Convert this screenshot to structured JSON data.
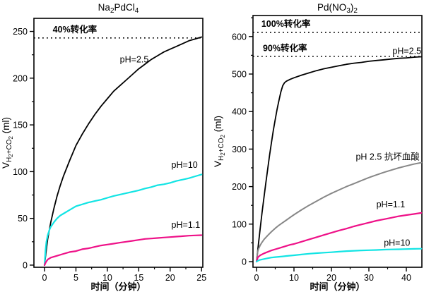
{
  "figure": {
    "background": "#ffffff",
    "text_color": "#000000"
  },
  "chart_data": [
    {
      "type": "line",
      "id": "na2pdcl4",
      "title_parts": [
        {
          "text": "Na",
          "level": 0
        },
        {
          "text": "2",
          "level": 1
        },
        {
          "text": "PdCl",
          "level": 0
        },
        {
          "text": "4",
          "level": 1
        }
      ],
      "title_plain": "Na2PdCl4",
      "xlabel": "时间（分钟）",
      "ylabel_parts": [
        {
          "text": "V",
          "level": 0
        },
        {
          "text": "H",
          "level": 1
        },
        {
          "text": "2",
          "level": 2
        },
        {
          "text": "+CO",
          "level": 1
        },
        {
          "text": "2",
          "level": 2
        },
        {
          "text": " (ml)",
          "level": 0
        }
      ],
      "ylabel_plain": "V H2+CO2 (ml)",
      "xlim": [
        -1.69,
        25.2
      ],
      "ylim": [
        -2.3,
        264
      ],
      "xticks": [
        0,
        5,
        10,
        15,
        20,
        25
      ],
      "xminor_step": 2.5,
      "yticks": [
        0,
        50,
        100,
        150,
        200,
        250
      ],
      "yminor_step": 25,
      "grid": false,
      "legend": "inline-labels",
      "ref_lines": [
        {
          "value": 243,
          "label": "40%转化率",
          "label_x": 1.3,
          "label_y": 249
        }
      ],
      "series": [
        {
          "id": "ph-2-5",
          "name": "pH=2.5",
          "color": "#000000",
          "width": 1.8,
          "label": {
            "text": "pH=2.5",
            "x": 12,
            "y": 217
          },
          "points": [
            [
              0,
              0
            ],
            [
              0.2,
              12
            ],
            [
              0.5,
              28
            ],
            [
              1,
              46
            ],
            [
              1.5,
              61
            ],
            [
              2,
              74
            ],
            [
              2.5,
              85
            ],
            [
              3,
              95
            ],
            [
              4,
              112
            ],
            [
              5,
              128
            ],
            [
              6,
              140
            ],
            [
              7,
              151
            ],
            [
              8,
              161
            ],
            [
              9,
              170
            ],
            [
              10,
              178
            ],
            [
              11,
              186
            ],
            [
              12,
              192
            ],
            [
              13,
              198
            ],
            [
              14,
              204
            ],
            [
              15,
              210
            ],
            [
              16,
              215
            ],
            [
              17,
              220
            ],
            [
              18,
              224
            ],
            [
              19,
              228
            ],
            [
              20,
              231
            ],
            [
              21,
              234
            ],
            [
              22,
              237
            ],
            [
              23,
              240
            ],
            [
              24,
              242
            ],
            [
              25,
              244
            ]
          ]
        },
        {
          "id": "ph-10",
          "name": "pH=10",
          "color": "#12e4e4",
          "width": 2.2,
          "label": {
            "text": "pH=10",
            "x": 20.2,
            "y": 104
          },
          "points": [
            [
              0,
              0
            ],
            [
              0.15,
              16
            ],
            [
              0.3,
              25
            ],
            [
              0.5,
              32
            ],
            [
              0.8,
              38
            ],
            [
              1,
              41
            ],
            [
              1.5,
              46
            ],
            [
              2,
              50
            ],
            [
              2.5,
              53
            ],
            [
              3,
              55
            ],
            [
              4,
              59
            ],
            [
              5,
              63
            ],
            [
              6,
              65
            ],
            [
              7,
              67
            ],
            [
              8,
              68.5
            ],
            [
              9,
              70
            ],
            [
              10,
              72
            ],
            [
              11,
              74
            ],
            [
              12,
              75.5
            ],
            [
              13,
              77
            ],
            [
              14,
              78.5
            ],
            [
              15,
              80
            ],
            [
              16,
              82
            ],
            [
              17,
              83.5
            ],
            [
              18,
              85.5
            ],
            [
              19,
              86.5
            ],
            [
              20,
              88
            ],
            [
              21,
              90
            ],
            [
              22,
              91.5
            ],
            [
              23,
              93
            ],
            [
              24,
              95
            ],
            [
              25,
              97
            ]
          ]
        },
        {
          "id": "ph-1-1",
          "name": "pH=1.1",
          "color": "#ee1188",
          "width": 2.2,
          "label": {
            "text": "pH=1.1",
            "x": 20.2,
            "y": 40
          },
          "points": [
            [
              0,
              0
            ],
            [
              0.2,
              3
            ],
            [
              0.5,
              6
            ],
            [
              1,
              8
            ],
            [
              2,
              10
            ],
            [
              3,
              12
            ],
            [
              4,
              14
            ],
            [
              5,
              15
            ],
            [
              6,
              17
            ],
            [
              7,
              18
            ],
            [
              8,
              19.5
            ],
            [
              9,
              21
            ],
            [
              10,
              22
            ],
            [
              11,
              23
            ],
            [
              12,
              24
            ],
            [
              13,
              25
            ],
            [
              14,
              26
            ],
            [
              15,
              27
            ],
            [
              16,
              28
            ],
            [
              17,
              28.5
            ],
            [
              18,
              29
            ],
            [
              19,
              29.5
            ],
            [
              20,
              30
            ],
            [
              21,
              30.5
            ],
            [
              22,
              31
            ],
            [
              23,
              31.5
            ],
            [
              24,
              31.8
            ],
            [
              25,
              32
            ]
          ]
        }
      ]
    },
    {
      "type": "line",
      "id": "pdno32",
      "title_parts": [
        {
          "text": "Pd(NO",
          "level": 0
        },
        {
          "text": "3",
          "level": 1
        },
        {
          "text": ")",
          "level": 0
        },
        {
          "text": "2",
          "level": 1
        }
      ],
      "title_plain": "Pd(NO3)2",
      "xlabel": "时间（分钟）",
      "ylabel_parts": [
        {
          "text": "V",
          "level": 0
        },
        {
          "text": "H",
          "level": 1
        },
        {
          "text": "2",
          "level": 2
        },
        {
          "text": "+CO",
          "level": 1
        },
        {
          "text": "2",
          "level": 2
        },
        {
          "text": " (ml)",
          "level": 0
        }
      ],
      "ylabel_plain": "V H2+CO2 (ml)",
      "xlim": [
        -0.94,
        44.15
      ],
      "ylim": [
        -15,
        656
      ],
      "xticks": [
        0,
        10,
        20,
        30,
        40
      ],
      "xminor_step": 5,
      "yticks": [
        0,
        100,
        200,
        300,
        400,
        500,
        600
      ],
      "yminor_step": 50,
      "grid": false,
      "legend": "inline-labels",
      "ref_lines": [
        {
          "value": 611,
          "label": "100%转化率",
          "label_x": 1.3,
          "label_y": 626
        },
        {
          "value": 547,
          "label": "90%转化率",
          "label_x": 1.7,
          "label_y": 561
        }
      ],
      "series": [
        {
          "id": "ph-2-5",
          "name": "pH=2.5",
          "color": "#000000",
          "width": 1.8,
          "label": {
            "text": "pH=2.5",
            "x": 36.3,
            "y": 554
          },
          "points": [
            [
              0,
              0
            ],
            [
              0.5,
              45
            ],
            [
              1,
              90
            ],
            [
              1.5,
              132
            ],
            [
              2,
              172
            ],
            [
              2.5,
              210
            ],
            [
              3,
              248
            ],
            [
              3.5,
              284
            ],
            [
              4,
              318
            ],
            [
              4.5,
              350
            ],
            [
              5,
              379
            ],
            [
              5.5,
              406
            ],
            [
              6,
              430
            ],
            [
              6.5,
              452
            ],
            [
              7,
              469
            ],
            [
              7.5,
              477
            ],
            [
              8,
              481
            ],
            [
              9,
              486
            ],
            [
              10,
              490
            ],
            [
              12,
              497
            ],
            [
              14,
              503
            ],
            [
              16,
              509
            ],
            [
              18,
              514
            ],
            [
              20,
              518
            ],
            [
              22,
              522
            ],
            [
              24,
              526
            ],
            [
              26,
              529
            ],
            [
              28,
              531
            ],
            [
              30,
              534
            ],
            [
              32,
              536
            ],
            [
              34,
              538
            ],
            [
              36,
              540
            ],
            [
              38,
              542
            ],
            [
              40,
              543
            ],
            [
              42,
              545
            ],
            [
              44,
              546
            ]
          ]
        },
        {
          "id": "ph-2-5-ascorbic",
          "name": "pH 2.5 抗坏血酸",
          "color": "#878787",
          "width": 2.0,
          "label": {
            "text": "pH 2.5 抗坏血酸",
            "x": 26.5,
            "y": 272
          },
          "points": [
            [
              0,
              0
            ],
            [
              0.3,
              26
            ],
            [
              0.5,
              33
            ],
            [
              1,
              44
            ],
            [
              1.5,
              52
            ],
            [
              2,
              59
            ],
            [
              3,
              70
            ],
            [
              4,
              80
            ],
            [
              5,
              89
            ],
            [
              6,
              97
            ],
            [
              7,
              104
            ],
            [
              8,
              111
            ],
            [
              9,
              118
            ],
            [
              10,
              125
            ],
            [
              12,
              138
            ],
            [
              14,
              150
            ],
            [
              16,
              161
            ],
            [
              18,
              172
            ],
            [
              20,
              182
            ],
            [
              22,
              191
            ],
            [
              24,
              200
            ],
            [
              26,
              208
            ],
            [
              28,
              216
            ],
            [
              30,
              224
            ],
            [
              32,
              231
            ],
            [
              34,
              238
            ],
            [
              36,
              244
            ],
            [
              38,
              250
            ],
            [
              40,
              255
            ],
            [
              42,
              260
            ],
            [
              44,
              264
            ]
          ]
        },
        {
          "id": "ph-1-1",
          "name": "pH=1.1",
          "color": "#ee1188",
          "width": 2.2,
          "label": {
            "text": "pH=1.1",
            "x": 32,
            "y": 145
          },
          "points": [
            [
              0,
              0
            ],
            [
              0.3,
              10
            ],
            [
              0.5,
              13
            ],
            [
              1,
              17
            ],
            [
              2,
              22
            ],
            [
              3,
              26
            ],
            [
              4,
              30
            ],
            [
              5,
              33
            ],
            [
              6,
              36
            ],
            [
              7,
              39
            ],
            [
              8,
              42
            ],
            [
              9,
              45
            ],
            [
              10,
              47
            ],
            [
              12,
              53
            ],
            [
              14,
              59
            ],
            [
              16,
              65
            ],
            [
              18,
              71
            ],
            [
              20,
              77
            ],
            [
              22,
              83
            ],
            [
              24,
              88
            ],
            [
              26,
              94
            ],
            [
              28,
              99
            ],
            [
              30,
              104
            ],
            [
              32,
              109
            ],
            [
              34,
              113
            ],
            [
              36,
              117
            ],
            [
              38,
              121
            ],
            [
              40,
              124
            ],
            [
              42,
              127
            ],
            [
              44,
              130
            ]
          ]
        },
        {
          "id": "ph-10",
          "name": "pH=10",
          "color": "#12e4e4",
          "width": 2.2,
          "label": {
            "text": "pH=10",
            "x": 34,
            "y": 42
          },
          "points": [
            [
              0,
              0
            ],
            [
              0.5,
              3
            ],
            [
              1,
              5
            ],
            [
              2,
              7
            ],
            [
              3,
              9
            ],
            [
              4,
              11
            ],
            [
              5,
              12
            ],
            [
              6,
              13
            ],
            [
              7,
              14
            ],
            [
              8,
              15
            ],
            [
              9,
              16
            ],
            [
              10,
              17
            ],
            [
              12,
              19
            ],
            [
              14,
              21
            ],
            [
              16,
              22.5
            ],
            [
              18,
              24
            ],
            [
              20,
              25
            ],
            [
              22,
              26.5
            ],
            [
              24,
              28
            ],
            [
              26,
              29
            ],
            [
              28,
              30
            ],
            [
              30,
              30.5
            ],
            [
              32,
              31
            ],
            [
              34,
              32
            ],
            [
              36,
              32.5
            ],
            [
              38,
              33
            ],
            [
              40,
              33.5
            ],
            [
              42,
              34
            ],
            [
              44,
              34.5
            ]
          ]
        }
      ]
    }
  ]
}
